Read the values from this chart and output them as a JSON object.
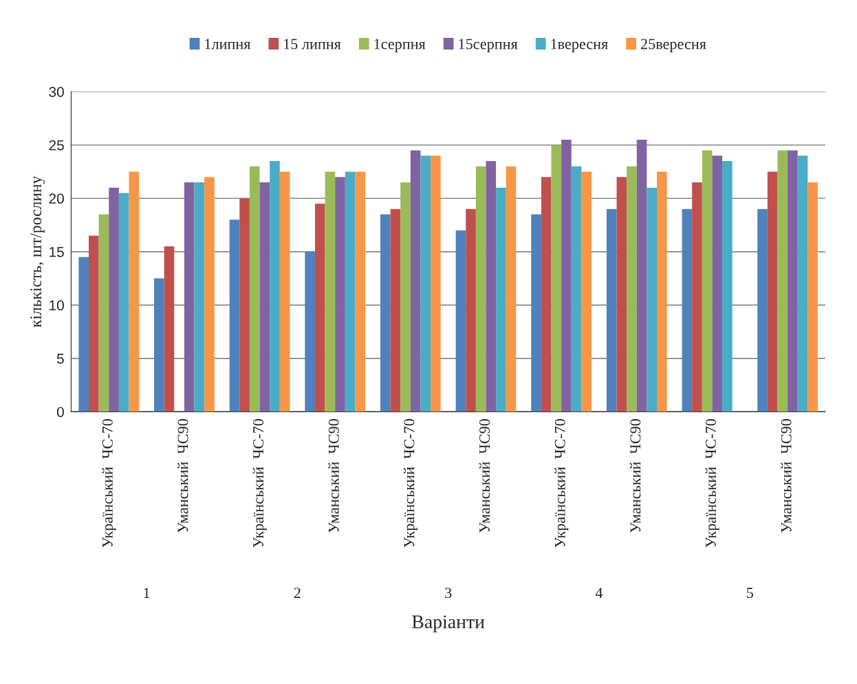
{
  "chart_data": {
    "type": "bar",
    "ylabel": "кількість, шт/рослину",
    "xlabel": "Варіанти",
    "categories": [
      "Український  ЧС-70",
      "Уманський  ЧС90",
      "Український  ЧС-70",
      "Уманський  ЧС90",
      "Український  ЧС-70",
      "Уманський  ЧС90",
      "Український  ЧС-70",
      "Уманський  ЧС90",
      "Український  ЧС-70",
      "Уманський  ЧС90"
    ],
    "series": [
      {
        "name": "1липня",
        "color": "#4f81bd",
        "values": [
          14.5,
          12.5,
          18,
          15,
          18.5,
          17,
          18.5,
          19,
          19,
          19
        ]
      },
      {
        "name": "15 липня",
        "color": "#c0504d",
        "values": [
          16.5,
          15.5,
          20,
          19.5,
          19,
          19,
          22,
          22,
          21.5,
          22.5
        ]
      },
      {
        "name": "1серпня",
        "color": "#9bbb59",
        "values": [
          18.5,
          0,
          23,
          22.5,
          21.5,
          23,
          25,
          23,
          24.5,
          24.5
        ]
      },
      {
        "name": "15серпня",
        "color": "#8064a2",
        "values": [
          21,
          21.5,
          21.5,
          22,
          24.5,
          23.5,
          25.5,
          25.5,
          24,
          24.5
        ]
      },
      {
        "name": "1вересня",
        "color": "#4bacc6",
        "values": [
          20.5,
          21.5,
          23.5,
          22.5,
          24,
          21,
          23,
          21,
          23.5,
          24
        ]
      },
      {
        "name": "25вересня",
        "color": "#f79646",
        "values": [
          22.5,
          22,
          22.5,
          22.5,
          24,
          23,
          22.5,
          22.5,
          0,
          21.5
        ]
      }
    ],
    "annotations": [
      "1",
      "2",
      "3",
      "4",
      "5"
    ],
    "ylim": [
      0,
      30
    ],
    "yticks": [
      0,
      5,
      10,
      15,
      20,
      25,
      30
    ],
    "grid": "y",
    "legend": "top"
  }
}
